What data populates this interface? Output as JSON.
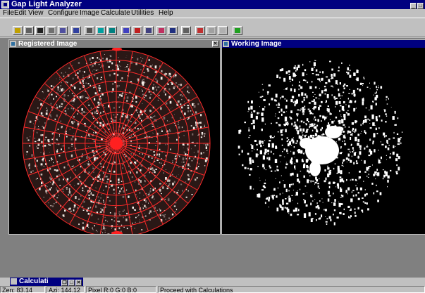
{
  "window": {
    "title": "Gap Light Analyzer"
  },
  "menu": [
    "File",
    "Edit",
    "View",
    "Configure",
    "Image",
    "Calculate",
    "Utilities",
    "Help"
  ],
  "toolbar": {
    "tools": [
      "open-icon",
      "save-icon",
      "disk-icon",
      "print-icon",
      "copy-icon",
      "undo-icon",
      "register-icon",
      "threshold-icon",
      "invert-icon",
      "zoom-icon",
      "calc-icon",
      "grid-icon",
      "target-icon",
      "calibrate-icon",
      "report-icon",
      "color-icon",
      "pen-icon",
      "erase-icon",
      "run-icon"
    ]
  },
  "registered_window": {
    "title": "Registered Image",
    "close_glyph": "✕"
  },
  "working_window": {
    "title": "Working Image"
  },
  "calc_window": {
    "title": "Calculati"
  },
  "status": {
    "zen": "Zen: 83.14",
    "azi": "Azi: 144.12",
    "pixel": "Pixel R:0 G:0 B:0",
    "message": "Proceed with Calculations"
  }
}
